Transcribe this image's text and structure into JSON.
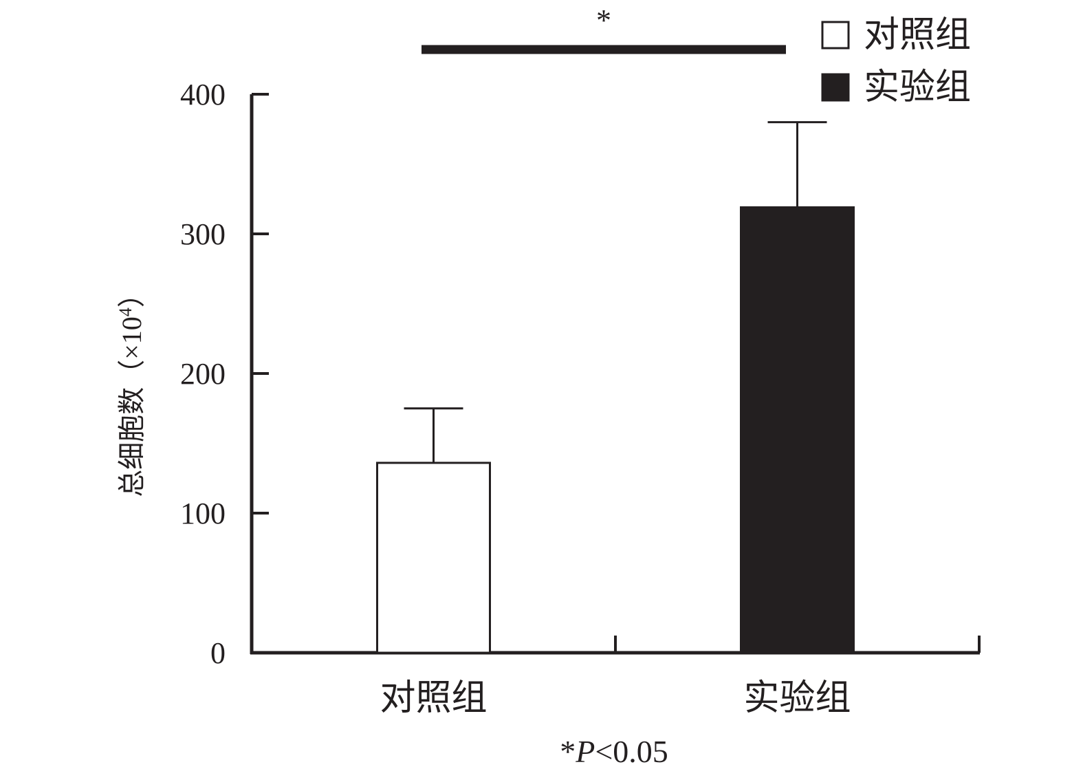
{
  "chart_data": {
    "type": "bar",
    "categories": [
      "对照组",
      "实验组"
    ],
    "values": [
      136,
      319
    ],
    "errors_upper": [
      175,
      380
    ],
    "fills": [
      "#ffffff",
      "#231f20"
    ],
    "ylabel_main": "总细胞数（×10",
    "ylabel_sup": "4",
    "ylabel_close": "）",
    "ylim": [
      0,
      400
    ],
    "yticks": [
      0,
      100,
      200,
      300,
      400
    ],
    "legend": {
      "position": "top-right",
      "items": [
        {
          "label": "对照组",
          "fill": "#ffffff"
        },
        {
          "label": "实验组",
          "fill": "#231f20"
        }
      ]
    },
    "significance": {
      "mark": "*",
      "between": [
        "对照组",
        "实验组"
      ]
    },
    "footnote": {
      "star": "*",
      "p": "P",
      "rest": "<0.05"
    }
  }
}
